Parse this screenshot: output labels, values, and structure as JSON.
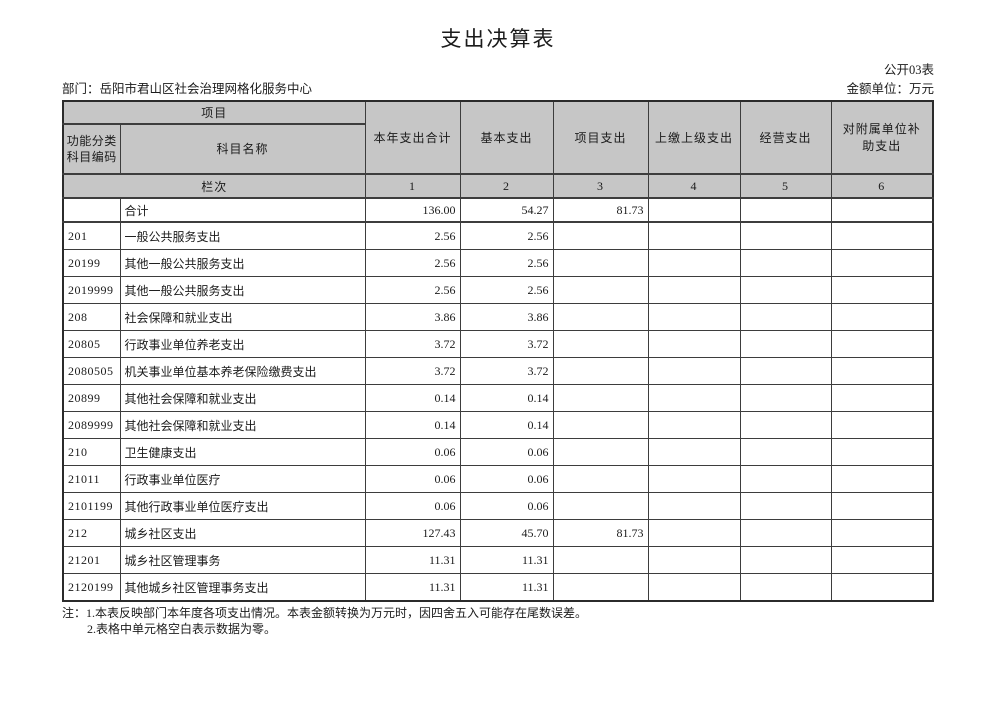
{
  "page": {
    "title": "支出决算表",
    "table_code": "公开03表",
    "department": "部门：岳阳市君山区社会治理网格化服务中心",
    "unit": "金额单位：万元"
  },
  "table": {
    "header": {
      "project_group": "项目",
      "code_label": "功能分类\n科目编码",
      "name_label": "科目名称",
      "columns": [
        "本年支出合计",
        "基本支出",
        "项目支出",
        "上缴上级支出",
        "经营支出",
        "对附属单位补助支出"
      ],
      "row_label": "栏次",
      "column_numbers": [
        "1",
        "2",
        "3",
        "4",
        "5",
        "6"
      ]
    },
    "rows": [
      {
        "code": "",
        "name": "合计",
        "values": [
          "136.00",
          "54.27",
          "81.73",
          "",
          "",
          ""
        ]
      },
      {
        "code": "201",
        "name": "一般公共服务支出",
        "values": [
          "2.56",
          "2.56",
          "",
          "",
          "",
          ""
        ]
      },
      {
        "code": "20199",
        "name": "其他一般公共服务支出",
        "values": [
          "2.56",
          "2.56",
          "",
          "",
          "",
          ""
        ]
      },
      {
        "code": "2019999",
        "name": "其他一般公共服务支出",
        "values": [
          "2.56",
          "2.56",
          "",
          "",
          "",
          ""
        ]
      },
      {
        "code": "208",
        "name": "社会保障和就业支出",
        "values": [
          "3.86",
          "3.86",
          "",
          "",
          "",
          ""
        ]
      },
      {
        "code": "20805",
        "name": "行政事业单位养老支出",
        "values": [
          "3.72",
          "3.72",
          "",
          "",
          "",
          ""
        ]
      },
      {
        "code": "2080505",
        "name": "机关事业单位基本养老保险缴费支出",
        "values": [
          "3.72",
          "3.72",
          "",
          "",
          "",
          ""
        ]
      },
      {
        "code": "20899",
        "name": "其他社会保障和就业支出",
        "values": [
          "0.14",
          "0.14",
          "",
          "",
          "",
          ""
        ]
      },
      {
        "code": "2089999",
        "name": "其他社会保障和就业支出",
        "values": [
          "0.14",
          "0.14",
          "",
          "",
          "",
          ""
        ]
      },
      {
        "code": "210",
        "name": "卫生健康支出",
        "values": [
          "0.06",
          "0.06",
          "",
          "",
          "",
          ""
        ]
      },
      {
        "code": "21011",
        "name": "行政事业单位医疗",
        "values": [
          "0.06",
          "0.06",
          "",
          "",
          "",
          ""
        ]
      },
      {
        "code": "2101199",
        "name": "其他行政事业单位医疗支出",
        "values": [
          "0.06",
          "0.06",
          "",
          "",
          "",
          ""
        ]
      },
      {
        "code": "212",
        "name": "城乡社区支出",
        "values": [
          "127.43",
          "45.70",
          "81.73",
          "",
          "",
          ""
        ]
      },
      {
        "code": "21201",
        "name": "城乡社区管理事务",
        "values": [
          "11.31",
          "11.31",
          "",
          "",
          "",
          ""
        ]
      },
      {
        "code": "2120199",
        "name": "其他城乡社区管理事务支出",
        "values": [
          "11.31",
          "11.31",
          "",
          "",
          "",
          ""
        ]
      }
    ]
  },
  "notes": {
    "line1": "注：1.本表反映部门本年度各项支出情况。本表金额转换为万元时，因四舍五入可能存在尾数误差。",
    "line2": "2.表格中单元格空白表示数据为零。"
  }
}
